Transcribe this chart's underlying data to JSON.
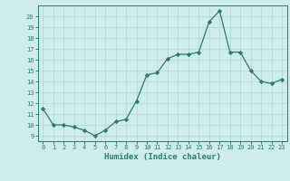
{
  "x": [
    0,
    1,
    2,
    3,
    4,
    5,
    6,
    7,
    8,
    9,
    10,
    11,
    12,
    13,
    14,
    15,
    16,
    17,
    18,
    19,
    20,
    21,
    22,
    23
  ],
  "y": [
    11.5,
    10.0,
    10.0,
    9.8,
    9.5,
    9.0,
    9.5,
    10.3,
    10.5,
    12.2,
    14.6,
    14.8,
    16.1,
    16.5,
    16.5,
    16.7,
    19.5,
    20.5,
    16.7,
    16.7,
    15.0,
    14.0,
    13.8,
    14.2
  ],
  "xlabel": "Humidex (Indice chaleur)",
  "xlim": [
    -0.5,
    23.5
  ],
  "ylim": [
    8.5,
    21.0
  ],
  "yticks": [
    9,
    10,
    11,
    12,
    13,
    14,
    15,
    16,
    17,
    18,
    19,
    20
  ],
  "xticks": [
    0,
    1,
    2,
    3,
    4,
    5,
    6,
    7,
    8,
    9,
    10,
    11,
    12,
    13,
    14,
    15,
    16,
    17,
    18,
    19,
    20,
    21,
    22,
    23
  ],
  "line_color": "#2d7a6e",
  "marker_color": "#2d7a6e",
  "bg_color": "#ceecea",
  "grid_color": "#b8d8d5",
  "tick_color": "#2d7a6e",
  "label_color": "#2d7a6e"
}
